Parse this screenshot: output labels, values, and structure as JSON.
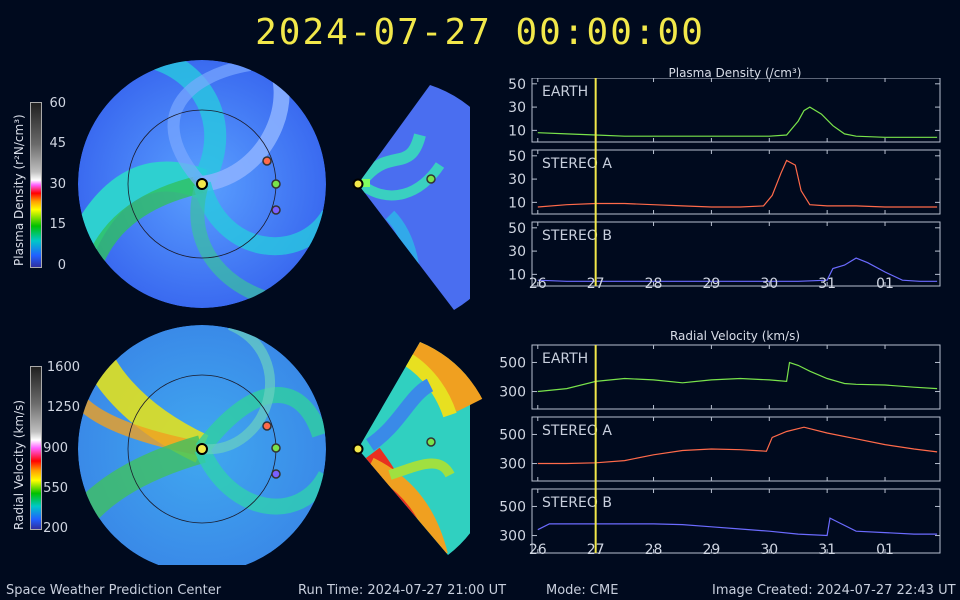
{
  "header": {
    "timestamp": "2024-07-27  00:00:00"
  },
  "colorbars": {
    "density": {
      "label": "Plasma Density (r²N/cm³)",
      "ticks": [
        "60",
        "45",
        "30",
        "15",
        "0"
      ]
    },
    "velocity": {
      "label": "Radial Velocity (km/s)",
      "ticks": [
        "1600",
        "1250",
        "900",
        "550",
        "200"
      ]
    }
  },
  "chart_data": [
    {
      "type": "line",
      "title": "Plasma Density (/cm³)",
      "x_ticks": [
        "26",
        "27",
        "28",
        "29",
        "30",
        "31",
        "01"
      ],
      "current_time_marker": "27",
      "panels": [
        {
          "name": "EARTH",
          "yticks": [
            "50",
            "30",
            "10"
          ],
          "ylim": [
            0,
            55
          ],
          "x": [
            26.0,
            26.5,
            27.0,
            27.5,
            28.0,
            28.5,
            29.0,
            29.5,
            30.0,
            30.3,
            30.5,
            30.6,
            30.7,
            30.9,
            31.1,
            31.3,
            31.5,
            32.0,
            32.9
          ],
          "values": [
            8,
            7,
            6,
            5,
            5,
            5,
            5,
            5,
            5,
            6,
            18,
            27,
            30,
            24,
            14,
            7,
            5,
            4,
            4
          ]
        },
        {
          "name": "STEREO A",
          "yticks": [
            "50",
            "30",
            "10"
          ],
          "ylim": [
            0,
            55
          ],
          "x": [
            26.0,
            26.5,
            27.0,
            27.5,
            28.0,
            28.5,
            29.0,
            29.5,
            29.9,
            30.05,
            30.2,
            30.3,
            30.45,
            30.55,
            30.7,
            31.0,
            31.5,
            32.0,
            32.9
          ],
          "values": [
            6,
            8,
            9,
            9,
            8,
            7,
            6,
            6,
            7,
            16,
            35,
            46,
            42,
            20,
            8,
            7,
            7,
            6,
            6
          ]
        },
        {
          "name": "STEREO B",
          "yticks": [
            "50",
            "30",
            "10"
          ],
          "ylim": [
            0,
            55
          ],
          "x": [
            26.0,
            26.5,
            27.0,
            27.5,
            28.0,
            28.5,
            29.0,
            29.5,
            30.0,
            30.5,
            31.0,
            31.1,
            31.3,
            31.5,
            31.7,
            32.0,
            32.3,
            32.6,
            32.9
          ],
          "values": [
            5,
            4,
            4,
            4,
            4,
            4,
            4,
            4,
            4,
            4,
            5,
            15,
            18,
            24,
            20,
            12,
            5,
            4,
            4
          ]
        }
      ]
    },
    {
      "type": "line",
      "title": "Radial Velocity (km/s)",
      "x_ticks": [
        "26",
        "27",
        "28",
        "29",
        "30",
        "31",
        "01"
      ],
      "current_time_marker": "27",
      "panels": [
        {
          "name": "EARTH",
          "yticks": [
            "500",
            "300"
          ],
          "ylim": [
            180,
            620
          ],
          "x": [
            26.0,
            26.5,
            27.0,
            27.5,
            28.0,
            28.5,
            29.0,
            29.5,
            30.0,
            30.3,
            30.35,
            30.5,
            30.7,
            31.0,
            31.3,
            31.5,
            32.0,
            32.5,
            32.9
          ],
          "values": [
            300,
            320,
            370,
            390,
            380,
            360,
            380,
            390,
            380,
            370,
            500,
            480,
            440,
            390,
            355,
            350,
            345,
            330,
            320
          ]
        },
        {
          "name": "STEREO A",
          "yticks": [
            "500",
            "300"
          ],
          "ylim": [
            180,
            620
          ],
          "x": [
            26.0,
            26.5,
            27.0,
            27.5,
            28.0,
            28.5,
            29.0,
            29.5,
            29.95,
            30.05,
            30.3,
            30.6,
            31.0,
            31.5,
            32.0,
            32.5,
            32.9
          ],
          "values": [
            300,
            300,
            305,
            320,
            360,
            390,
            400,
            395,
            385,
            480,
            520,
            550,
            510,
            470,
            430,
            400,
            380
          ]
        },
        {
          "name": "STEREO B",
          "yticks": [
            "500",
            "300"
          ],
          "ylim": [
            180,
            620
          ],
          "x": [
            26.0,
            26.2,
            26.5,
            27.0,
            27.5,
            28.0,
            28.5,
            29.0,
            29.5,
            30.0,
            30.5,
            31.0,
            31.05,
            31.2,
            31.5,
            32.0,
            32.5,
            32.9
          ],
          "values": [
            340,
            380,
            380,
            380,
            380,
            380,
            375,
            360,
            345,
            330,
            310,
            300,
            420,
            390,
            330,
            320,
            310,
            310
          ]
        }
      ]
    }
  ],
  "colors": {
    "earth": "#79e34b",
    "stereo_a": "#ff6a4a",
    "stereo_b": "#6b6bff",
    "marker": "#f2e84a",
    "background": "#000a1e"
  },
  "footer": {
    "org": "Space Weather Prediction Center",
    "run_time": "Run Time: 2024-07-27 21:00 UT",
    "mode": "Mode: CME",
    "created": "Image Created: 2024-07-27 22:43 UT"
  }
}
